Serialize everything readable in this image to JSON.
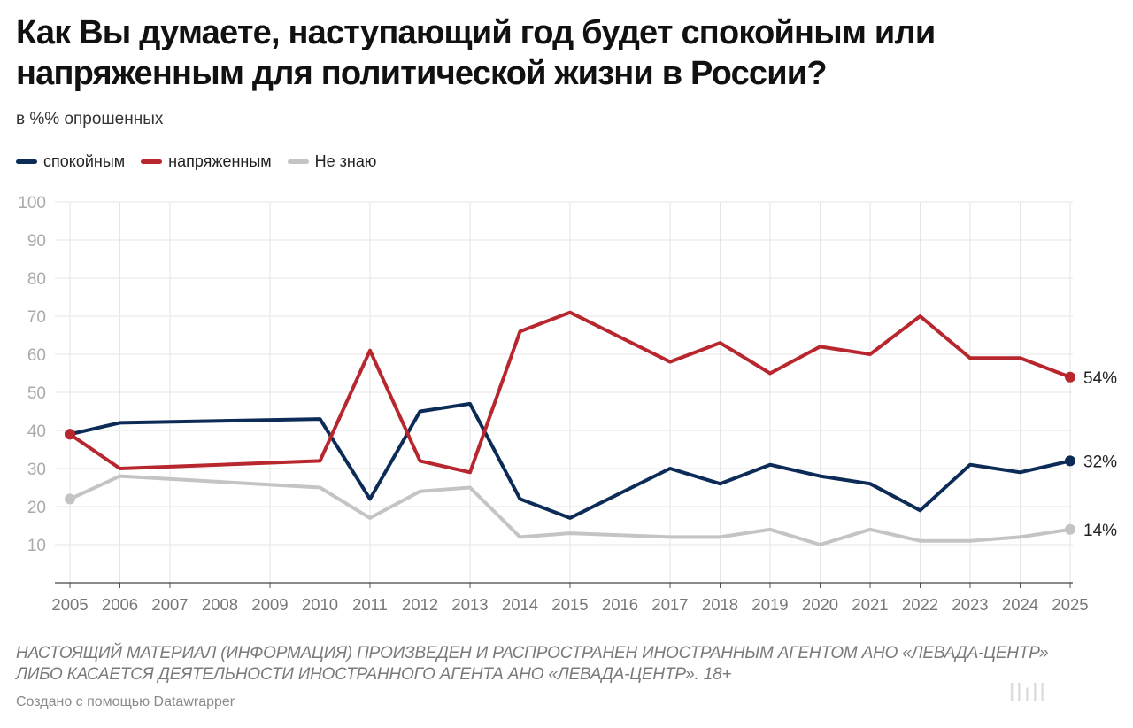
{
  "header": {
    "title": "Как Вы думаете, наступающий год будет спокойным или напряженным для политической жизни в России?",
    "subtitle": "в %% опрошенных"
  },
  "footer": {
    "note": "НАСТОЯЩИЙ МАТЕРИАЛ (ИНФОРМАЦИЯ) ПРОИЗВЕДЕН И РАСПРОСТРАНЕН ИНОСТРАННЫМ АГЕНТОМ АНО «ЛЕВАДА-ЦЕНТР» ЛИБО КАСАЕТСЯ ДЕЯТЕЛЬНОСТИ ИНОСТРАННОГО АГЕНТА АНО «ЛЕВАДА-ЦЕНТР». 18+",
    "credit": "Создано с помощью Datawrapper"
  },
  "chart_data": {
    "type": "line",
    "title": "Как Вы думаете, наступающий год будет спокойным или напряженным для политической жизни в России?",
    "subtitle": "в %% опрошенных",
    "xlabel": "",
    "ylabel": "",
    "ylim": [
      0,
      100
    ],
    "yticks": [
      10,
      20,
      30,
      40,
      50,
      60,
      70,
      80,
      90,
      100
    ],
    "x_labels": [
      "2005",
      "2006",
      "2007",
      "2008",
      "2009",
      "2010",
      "2011",
      "2012",
      "2013",
      "2014",
      "2015",
      "2016",
      "2017",
      "2018",
      "2019",
      "2020",
      "2021",
      "2022",
      "2023",
      "2024",
      "2025"
    ],
    "grid": true,
    "legend_position": "top-left",
    "series": [
      {
        "name": "спокойным",
        "color": "#0d2b57",
        "x": [
          2005,
          2006,
          2010,
          2011,
          2012,
          2013,
          2014,
          2015,
          2017,
          2018,
          2019,
          2020,
          2021,
          2022,
          2023,
          2024,
          2025
        ],
        "values": [
          39,
          42,
          43,
          22,
          45,
          47,
          22,
          17,
          30,
          26,
          31,
          28,
          26,
          19,
          31,
          29,
          32
        ],
        "end_label": "32%"
      },
      {
        "name": "напряженным",
        "color": "#b8262e",
        "x": [
          2005,
          2006,
          2010,
          2011,
          2012,
          2013,
          2014,
          2015,
          2017,
          2018,
          2019,
          2020,
          2021,
          2022,
          2023,
          2024,
          2025
        ],
        "values": [
          39,
          30,
          32,
          61,
          32,
          29,
          66,
          71,
          58,
          63,
          55,
          62,
          60,
          70,
          59,
          59,
          54
        ],
        "end_label": "54%"
      },
      {
        "name": "Не знаю",
        "color": "#c4c4c4",
        "x": [
          2005,
          2006,
          2010,
          2011,
          2012,
          2013,
          2014,
          2015,
          2017,
          2018,
          2019,
          2020,
          2021,
          2022,
          2023,
          2024,
          2025
        ],
        "values": [
          22,
          28,
          25,
          17,
          24,
          25,
          12,
          13,
          12,
          12,
          14,
          10,
          14,
          11,
          11,
          12,
          14
        ],
        "end_label": "14%"
      }
    ]
  }
}
